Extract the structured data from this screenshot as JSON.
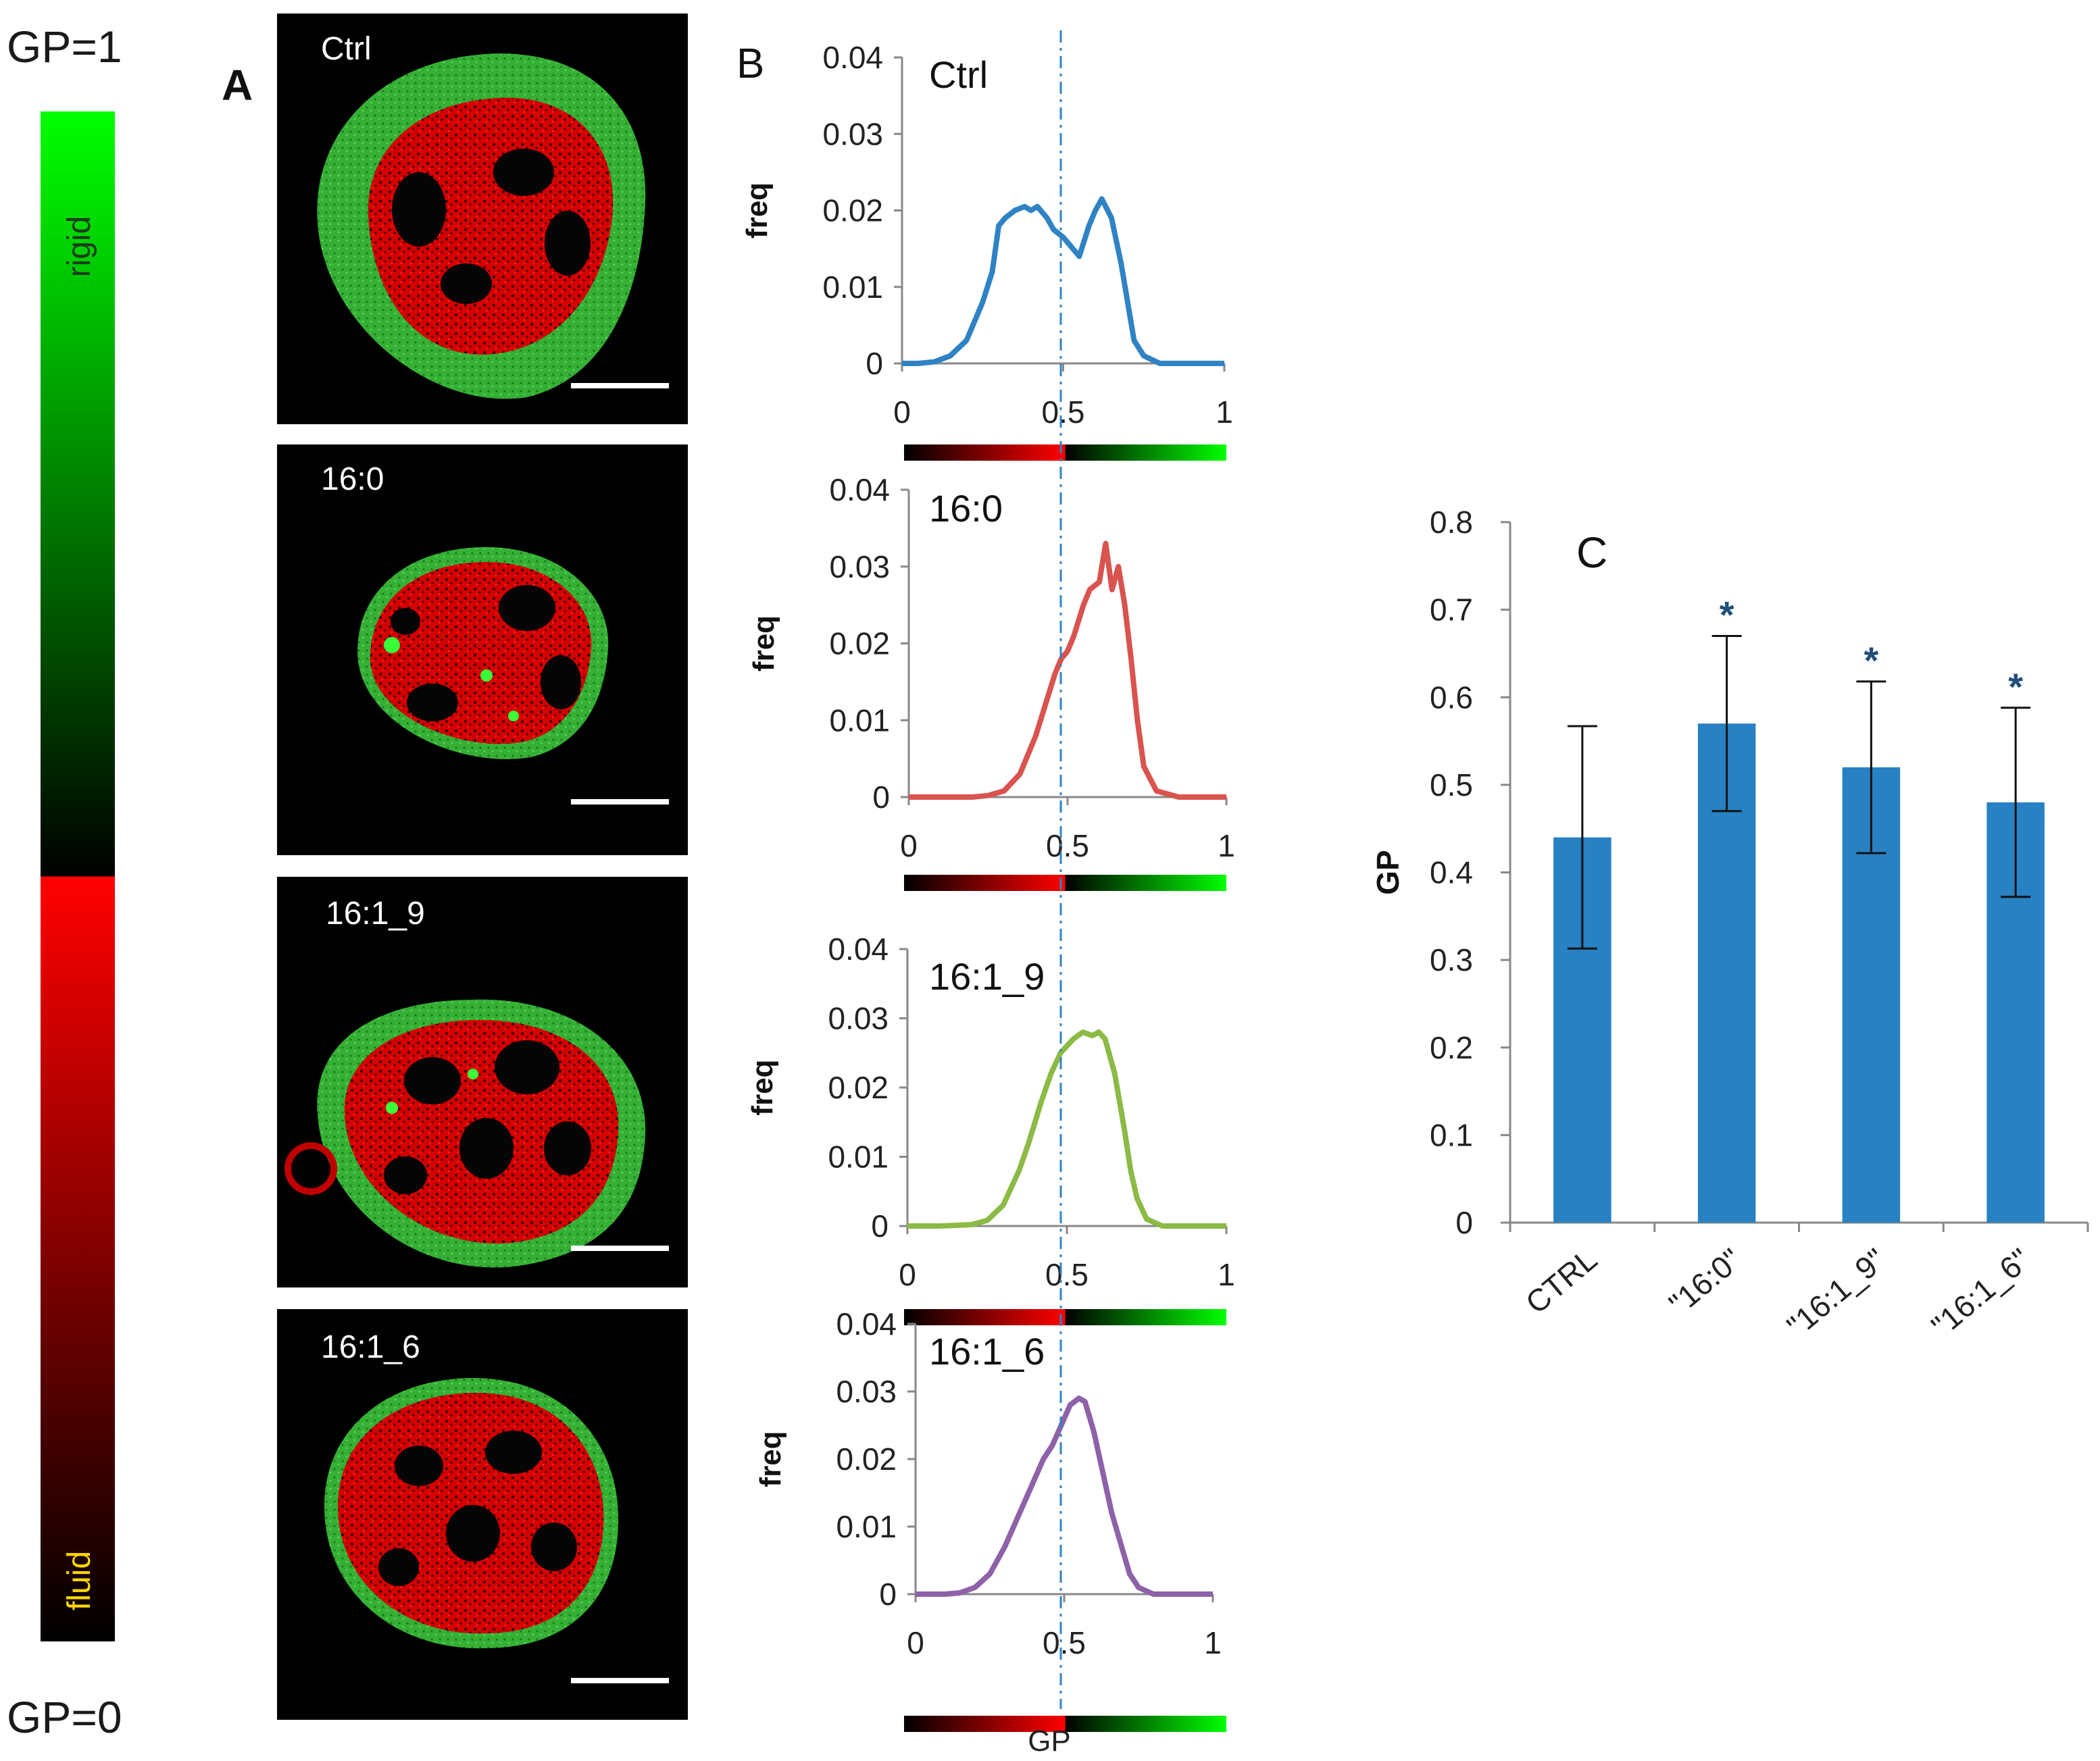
{
  "scale_bar": {
    "top_label": "GP=1",
    "bottom_label": "GP=0",
    "rigid_label": "rigid",
    "fluid_label": "fluid",
    "colors": {
      "green": "#00ff00",
      "black": "#000000",
      "red": "#ff0000",
      "fluid_text": "#ffd700",
      "rigid_text": "#1e3a1e"
    }
  },
  "panel_a": {
    "label": "A",
    "images": [
      {
        "label": "Ctrl"
      },
      {
        "label": "16:0"
      },
      {
        "label": "16:1_9"
      },
      {
        "label": "16:1_6"
      }
    ]
  },
  "panel_b": {
    "label": "B",
    "x_label": "GP"
  },
  "panel_c": {
    "label": "C"
  },
  "chart_data": [
    {
      "type": "line",
      "title": "Ctrl",
      "xlabel": "",
      "ylabel": "freq",
      "xlim": [
        0,
        1
      ],
      "ylim": [
        0,
        0.04
      ],
      "xticks": [
        "0",
        "0.5",
        "1"
      ],
      "yticks": [
        "0",
        "0.01",
        "0.02",
        "0.03",
        "0.04"
      ],
      "reference_line_x": 0.5,
      "color": "#2f83c4",
      "x": [
        0,
        0.05,
        0.1,
        0.15,
        0.2,
        0.25,
        0.28,
        0.3,
        0.32,
        0.35,
        0.38,
        0.4,
        0.42,
        0.45,
        0.47,
        0.5,
        0.53,
        0.55,
        0.58,
        0.6,
        0.62,
        0.65,
        0.68,
        0.7,
        0.72,
        0.75,
        0.8,
        0.85,
        0.9,
        1.0
      ],
      "y": [
        0,
        0,
        0.0002,
        0.001,
        0.003,
        0.008,
        0.012,
        0.018,
        0.019,
        0.02,
        0.0205,
        0.02,
        0.0205,
        0.019,
        0.0175,
        0.0165,
        0.015,
        0.014,
        0.018,
        0.02,
        0.0215,
        0.019,
        0.013,
        0.008,
        0.003,
        0.001,
        0,
        0,
        0,
        0
      ]
    },
    {
      "type": "line",
      "title": "16:0",
      "xlabel": "",
      "ylabel": "freq",
      "xlim": [
        0,
        1
      ],
      "ylim": [
        0,
        0.04
      ],
      "xticks": [
        "0",
        "0.5",
        "1"
      ],
      "yticks": [
        "0",
        "0.01",
        "0.02",
        "0.03",
        "0.04"
      ],
      "reference_line_x": 0.5,
      "color": "#d9534f",
      "x": [
        0,
        0.1,
        0.2,
        0.25,
        0.3,
        0.35,
        0.4,
        0.43,
        0.46,
        0.48,
        0.5,
        0.52,
        0.55,
        0.57,
        0.6,
        0.62,
        0.64,
        0.66,
        0.68,
        0.7,
        0.72,
        0.74,
        0.78,
        0.85,
        1.0
      ],
      "y": [
        0,
        0,
        0,
        0.0002,
        0.0008,
        0.003,
        0.008,
        0.012,
        0.016,
        0.018,
        0.019,
        0.021,
        0.025,
        0.027,
        0.028,
        0.033,
        0.027,
        0.03,
        0.025,
        0.018,
        0.01,
        0.004,
        0.0008,
        0,
        0
      ]
    },
    {
      "type": "line",
      "title": "16:1_9",
      "xlabel": "",
      "ylabel": "freq",
      "xlim": [
        0,
        1
      ],
      "ylim": [
        0,
        0.04
      ],
      "xticks": [
        "0",
        "0.5",
        "1"
      ],
      "yticks": [
        "0",
        "0.01",
        "0.02",
        "0.03",
        "0.04"
      ],
      "reference_line_x": 0.5,
      "color": "#8cba45",
      "x": [
        0,
        0.1,
        0.2,
        0.25,
        0.3,
        0.35,
        0.38,
        0.42,
        0.45,
        0.48,
        0.5,
        0.52,
        0.55,
        0.58,
        0.6,
        0.62,
        0.65,
        0.68,
        0.7,
        0.72,
        0.75,
        0.8,
        0.9,
        1.0
      ],
      "y": [
        0,
        0,
        0.0002,
        0.0008,
        0.003,
        0.008,
        0.012,
        0.018,
        0.022,
        0.025,
        0.026,
        0.027,
        0.028,
        0.0275,
        0.028,
        0.027,
        0.022,
        0.014,
        0.008,
        0.004,
        0.001,
        0,
        0,
        0
      ]
    },
    {
      "type": "line",
      "title": "16:1_6",
      "xlabel": "GP",
      "ylabel": "freq",
      "xlim": [
        0,
        1
      ],
      "ylim": [
        0,
        0.04
      ],
      "xticks": [
        "0",
        "0.5",
        "1"
      ],
      "yticks": [
        "0",
        "0.01",
        "0.02",
        "0.03",
        "0.04"
      ],
      "reference_line_x": 0.5,
      "color": "#8e62a8",
      "x": [
        0,
        0.1,
        0.15,
        0.2,
        0.25,
        0.3,
        0.35,
        0.4,
        0.43,
        0.46,
        0.48,
        0.5,
        0.52,
        0.55,
        0.57,
        0.6,
        0.63,
        0.66,
        0.7,
        0.72,
        0.75,
        0.8,
        0.9,
        1.0
      ],
      "y": [
        0,
        0,
        0.0002,
        0.001,
        0.003,
        0.007,
        0.012,
        0.017,
        0.02,
        0.022,
        0.024,
        0.026,
        0.028,
        0.029,
        0.0285,
        0.024,
        0.018,
        0.012,
        0.006,
        0.003,
        0.001,
        0,
        0,
        0
      ]
    },
    {
      "type": "bar",
      "title": "",
      "xlabel": "",
      "ylabel": "GP",
      "categories": [
        "CTRL",
        "\"16:0\"",
        "\"16:1_9\"",
        "\"16:1_6\""
      ],
      "values": [
        0.44,
        0.57,
        0.52,
        0.48
      ],
      "error": [
        0.127,
        0.1,
        0.098,
        0.108
      ],
      "significance": [
        "",
        "*",
        "*",
        "*"
      ],
      "ylim": [
        0,
        0.8
      ],
      "yticks": [
        "0",
        "0.1",
        "0.2",
        "0.3",
        "0.4",
        "0.5",
        "0.6",
        "0.7",
        "0.8"
      ],
      "color": "#2781c2",
      "star_color": "#1f4e79"
    }
  ]
}
